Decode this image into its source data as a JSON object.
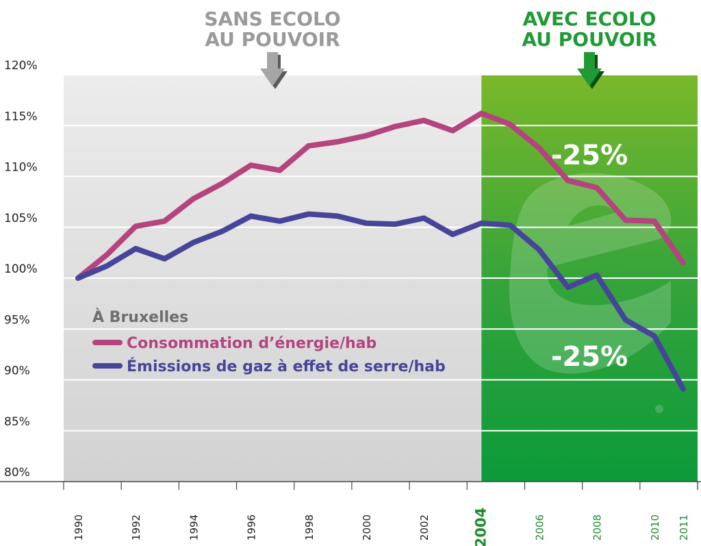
{
  "chart_data": {
    "type": "line",
    "title": "",
    "xlabel": "",
    "ylabel": "",
    "x": [
      1990,
      1991,
      1992,
      1993,
      1994,
      1995,
      1996,
      1997,
      1998,
      1999,
      2000,
      2001,
      2002,
      2003,
      2004,
      2005,
      2006,
      2007,
      2008,
      2009,
      2010,
      2011
    ],
    "xlim": [
      1989.5,
      2011.5
    ],
    "ylim": [
      80,
      120
    ],
    "y_ticks": [
      80,
      85,
      90,
      95,
      100,
      105,
      110,
      115,
      120
    ],
    "y_tick_labels": [
      "80%",
      "85%",
      "90%",
      "95%",
      "100%",
      "105%",
      "110%",
      "115%",
      "120%"
    ],
    "x_tick_labels": [
      {
        "year": 1990,
        "label": "1990",
        "style": "normal"
      },
      {
        "year": 1992,
        "label": "1992",
        "style": "normal"
      },
      {
        "year": 1994,
        "label": "1994",
        "style": "normal"
      },
      {
        "year": 1996,
        "label": "1996",
        "style": "normal"
      },
      {
        "year": 1998,
        "label": "1998",
        "style": "normal"
      },
      {
        "year": 2000,
        "label": "2000",
        "style": "normal"
      },
      {
        "year": 2002,
        "label": "2002",
        "style": "normal"
      },
      {
        "year": 2004,
        "label": "2004",
        "style": "bold"
      },
      {
        "year": 2006,
        "label": "2006",
        "style": "green"
      },
      {
        "year": 2008,
        "label": "2008",
        "style": "green"
      },
      {
        "year": 2010,
        "label": "2010",
        "style": "green"
      },
      {
        "year": 2011,
        "label": "2011",
        "style": "green"
      }
    ],
    "series": [
      {
        "name": "Consommation d’énergie/hab",
        "color": "#b5447e",
        "values": [
          100,
          102.3,
          105.1,
          105.6,
          107.8,
          109.3,
          111.1,
          110.6,
          113.0,
          113.4,
          114.0,
          114.9,
          115.5,
          114.5,
          116.2,
          115.1,
          112.8,
          109.6,
          108.9,
          105.7,
          105.6,
          101.5
        ]
      },
      {
        "name": "Émissions de gaz à effet de serre/hab",
        "color": "#47459a",
        "values": [
          100,
          101.2,
          102.9,
          101.9,
          103.5,
          104.6,
          106.1,
          105.6,
          106.3,
          106.1,
          105.4,
          105.3,
          105.9,
          104.3,
          105.4,
          105.2,
          102.8,
          99.1,
          100.3,
          95.9,
          94.3,
          89.1
        ]
      }
    ],
    "regions": [
      {
        "label_line1": "SANS ECOLO",
        "label_line2": "AU POUVOIR",
        "from": 1989.5,
        "to": 2004,
        "color": "#dcdcdc"
      },
      {
        "label_line1": "AVEC ECOLO",
        "label_line2": "AU POUVOIR",
        "from": 2004,
        "to": 2011.5,
        "color": "#2fa32c"
      }
    ],
    "legend_title": "À Bruxelles",
    "legend_position": "center-left",
    "annotations": [
      "-25%",
      "-25%"
    ],
    "grid": true
  }
}
